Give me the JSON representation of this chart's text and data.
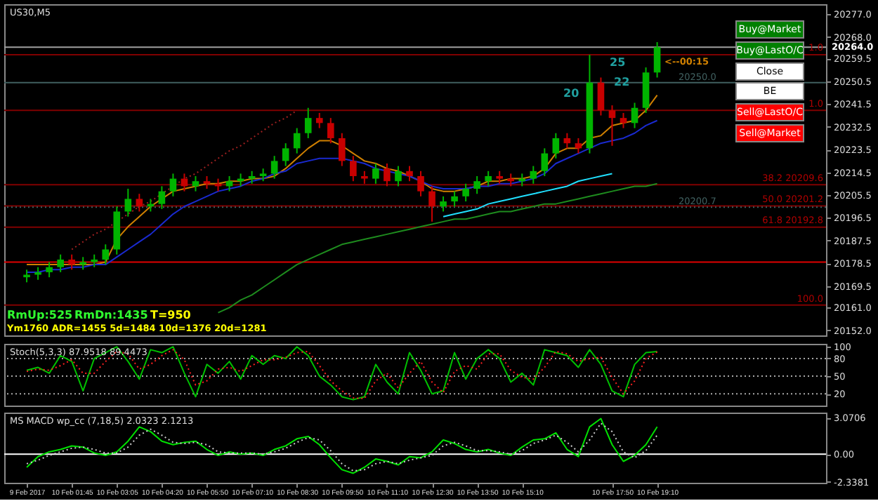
{
  "chart_data": [
    {
      "type": "candlestick",
      "title": "US30,M5",
      "categories": [
        null,
        null,
        null,
        null,
        null,
        null,
        null,
        null,
        null,
        null,
        null,
        null,
        null,
        null,
        null,
        null,
        null,
        null,
        null,
        null,
        null,
        null,
        null,
        null,
        null,
        null,
        null,
        null,
        null,
        null,
        null,
        null,
        null,
        null,
        null,
        null,
        null,
        null,
        null,
        null,
        null,
        null,
        null,
        null,
        null,
        null,
        null,
        null,
        null,
        null,
        null,
        null,
        null,
        null,
        null,
        null,
        null
      ],
      "ohlc": [
        [
          20173,
          20176,
          20171,
          20174
        ],
        [
          20174,
          20177,
          20172,
          20175
        ],
        [
          20175,
          20179,
          20173,
          20177
        ],
        [
          20177,
          20182,
          20175,
          20180
        ],
        [
          20180,
          20182,
          20176,
          20178
        ],
        [
          20178,
          20181,
          20176,
          20179
        ],
        [
          20179,
          20182,
          20177,
          20180
        ],
        [
          20180,
          20186,
          20178,
          20184
        ],
        [
          20184,
          20201,
          20182,
          20199
        ],
        [
          20199,
          20208,
          20197,
          20204
        ],
        [
          20204,
          20206,
          20199,
          20201
        ],
        [
          20201,
          20204,
          20199,
          20202
        ],
        [
          20202,
          20209,
          20200,
          20207
        ],
        [
          20207,
          20214,
          20205,
          20212
        ],
        [
          20212,
          20214,
          20207,
          20209
        ],
        [
          20209,
          20213,
          20207,
          20211
        ],
        [
          20211,
          20213,
          20208,
          20210
        ],
        [
          20210,
          20212,
          20207,
          20209
        ],
        [
          20209,
          20213,
          20207,
          20211
        ],
        [
          20211,
          20214,
          20209,
          20212
        ],
        [
          20212,
          20215,
          20210,
          20213
        ],
        [
          20213,
          20216,
          20211,
          20214
        ],
        [
          20214,
          20221,
          20212,
          20219
        ],
        [
          20219,
          20226,
          20217,
          20224
        ],
        [
          20224,
          20232,
          20222,
          20230
        ],
        [
          20230,
          20240,
          20228,
          20236
        ],
        [
          20236,
          20238,
          20232,
          20234
        ],
        [
          20234,
          20236,
          20226,
          20228
        ],
        [
          20228,
          20230,
          20217,
          20219
        ],
        [
          20219,
          20221,
          20211,
          20213
        ],
        [
          20213,
          20215,
          20210,
          20212
        ],
        [
          20212,
          20218,
          20210,
          20216
        ],
        [
          20216,
          20218,
          20209,
          20211
        ],
        [
          20211,
          20217,
          20209,
          20215
        ],
        [
          20215,
          20217,
          20211,
          20213
        ],
        [
          20213,
          20215,
          20205,
          20207
        ],
        [
          20207,
          20209,
          20195,
          20201
        ],
        [
          20201,
          20205,
          20199,
          20203
        ],
        [
          20203,
          20207,
          20201,
          20205
        ],
        [
          20205,
          20210,
          20203,
          20208
        ],
        [
          20208,
          20213,
          20206,
          20211
        ],
        [
          20211,
          20215,
          20209,
          20213
        ],
        [
          20213,
          20215,
          20210,
          20212
        ],
        [
          20212,
          20214,
          20209,
          20211
        ],
        [
          20211,
          20214,
          20209,
          20212
        ],
        [
          20212,
          20217,
          20210,
          20215
        ],
        [
          20215,
          20224,
          20213,
          20222
        ],
        [
          20222,
          20230,
          20220,
          20228
        ],
        [
          20228,
          20230,
          20224,
          20226
        ],
        [
          20226,
          20228,
          20222,
          20224
        ],
        [
          20224,
          20261,
          20222,
          20250
        ],
        [
          20250,
          20252,
          20237,
          20239
        ],
        [
          20239,
          20241,
          20225,
          20236
        ],
        [
          20236,
          20238,
          20232,
          20234
        ],
        [
          20234,
          20242,
          20232,
          20240
        ],
        [
          20240,
          20256,
          20238,
          20254
        ],
        [
          20254,
          20266,
          20252,
          20264
        ]
      ],
      "colors": [
        "#00b400",
        "#00b400",
        "#00b400",
        "#00b400",
        "#c80000",
        "#00b400",
        "#00b400",
        "#00b400",
        "#00b400",
        "#00b400",
        "#c80000",
        "#00b400",
        "#00b400",
        "#00b400",
        "#c80000",
        "#00b400",
        "#c80000",
        "#c80000",
        "#00b400",
        "#00b400",
        "#00b400",
        "#00b400",
        "#00b400",
        "#00b400",
        "#00b400",
        "#00b400",
        "#c80000",
        "#c80000",
        "#c80000",
        "#c80000",
        "#c80000",
        "#00b400",
        "#c80000",
        "#00b400",
        "#c80000",
        "#c80000",
        "#c80000",
        "#00b400",
        "#00b400",
        "#00b400",
        "#00b400",
        "#00b400",
        "#c80000",
        "#c80000",
        "#00b400",
        "#00b400",
        "#00b400",
        "#00b400",
        "#c80000",
        "#c80000",
        "#00b400",
        "#c80000",
        "#c80000",
        "#c80000",
        "#00b400",
        "#00b400",
        "#00b400"
      ],
      "series": [
        {
          "type": "line",
          "color": "#d08000",
          "values": [
            20178,
            20178,
            20178,
            20178,
            20178,
            20178,
            20178,
            20179,
            20188,
            20193,
            20197,
            20201,
            20204,
            20207,
            20208,
            20209,
            20210,
            20210,
            20211,
            20211,
            20212,
            20212,
            20213,
            20216,
            20220,
            20224,
            20227,
            20227,
            20225,
            20222,
            20219,
            20218,
            20216,
            20215,
            20213,
            20211,
            20208,
            20207,
            20207,
            20208,
            20209,
            20211,
            20211,
            20212,
            20212,
            20213,
            20216,
            20222,
            20224,
            20224,
            20228,
            20229,
            20233,
            20234,
            20235,
            20239,
            20245
          ]
        },
        {
          "type": "line",
          "color": "#1a2ad0",
          "values": [
            20175,
            20175,
            20176,
            20176,
            20177,
            20177,
            20178,
            20178,
            20181,
            20184,
            20187,
            20190,
            20194,
            20198,
            20201,
            20203,
            20205,
            20207,
            20208,
            20209,
            20211,
            20212,
            20214,
            20215,
            20218,
            20219,
            20220,
            20220,
            20220,
            20219,
            20218,
            20216,
            20215,
            20214,
            20213,
            20211,
            20209,
            20208,
            20208,
            20208,
            20209,
            20209,
            20210,
            20210,
            20211,
            20212,
            20214,
            20218,
            20220,
            20222,
            20224,
            20226,
            20227,
            20228,
            20230,
            20233,
            20235
          ]
        },
        {
          "type": "line",
          "color": "#1e8c1e",
          "values": [
            null,
            null,
            null,
            null,
            null,
            null,
            null,
            null,
            null,
            null,
            null,
            null,
            null,
            null,
            null,
            null,
            null,
            20159,
            20161,
            20164,
            20166,
            20169,
            20172,
            20175,
            20178,
            20180,
            20182,
            20184,
            20186,
            20187,
            20188,
            20189,
            20190,
            20191,
            20192,
            20193,
            20194,
            20195,
            20196,
            20196,
            20197,
            20198,
            20199,
            20199,
            20200,
            20201,
            20202,
            20202,
            20203,
            20204,
            20205,
            20206,
            20207,
            20208,
            20209,
            20209,
            20210
          ]
        },
        {
          "type": "line",
          "color": "#20e0ff",
          "values": [
            null,
            null,
            null,
            null,
            null,
            null,
            null,
            null,
            null,
            null,
            null,
            null,
            null,
            null,
            null,
            null,
            null,
            null,
            null,
            null,
            null,
            null,
            null,
            null,
            null,
            null,
            null,
            null,
            null,
            null,
            null,
            null,
            null,
            null,
            null,
            null,
            null,
            20197,
            20198,
            20199,
            20200,
            20202,
            20203,
            20204,
            20205,
            20206,
            20207,
            20208,
            20209,
            20211,
            20212,
            20213,
            20214,
            null,
            null,
            null,
            null
          ]
        },
        {
          "type": "line",
          "color": "#a02020",
          "line_style": "dotted",
          "values": [
            null,
            null,
            null,
            null,
            20184,
            20187,
            20190,
            20192,
            20195,
            20198,
            20201,
            20203,
            20206,
            20209,
            20212,
            20214,
            20217,
            20220,
            20223,
            20225,
            20228,
            20231,
            20234,
            20236,
            20239,
            null,
            null,
            null,
            null,
            null,
            null,
            null,
            null,
            null,
            null,
            null,
            null,
            null,
            null,
            null,
            null,
            null,
            null,
            null,
            null,
            null,
            null,
            null,
            null,
            null,
            null,
            null,
            null,
            null,
            null,
            null,
            null
          ]
        }
      ],
      "ylim": [
        20150,
        20281
      ],
      "yticks": [
        {
          "value": 20277,
          "label": "20277.0"
        },
        {
          "value": 20268,
          "label": "20268.0"
        },
        20259.5,
        20250.5,
        20241.5,
        20232.5,
        20223.5,
        20214.5,
        20205.5,
        20196.5,
        20187.5,
        20178.5,
        20169.5,
        {
          "value": 20161,
          "label": "20161.0"
        },
        {
          "value": 20152,
          "label": "20152.0"
        }
      ],
      "tick_labels": "y",
      "ref_lines": [
        {
          "axis": "y",
          "value": 20264.0,
          "label": "20264.0",
          "color": "#a0a0a0"
        },
        {
          "axis": "y",
          "value": 20261,
          "color": "#800000"
        },
        {
          "axis": "y",
          "value": 20250.0,
          "label": "20250.0",
          "color": "#406060"
        },
        {
          "axis": "y",
          "value": 20239,
          "color": "#800000"
        },
        {
          "axis": "y",
          "value": 20209.6,
          "color": "#800000"
        },
        {
          "axis": "y",
          "value": 20201.2,
          "color": "#800000"
        },
        {
          "axis": "y",
          "value": 20200.7,
          "label": "20200.7",
          "color": "#406060",
          "line_style": "dotted"
        },
        {
          "axis": "y",
          "value": 20192.8,
          "color": "#800000"
        },
        {
          "axis": "y",
          "value": 20179,
          "color": "#e00000"
        },
        {
          "axis": "y",
          "value": 20162,
          "color": "#800000"
        }
      ],
      "annotations": [
        "RmUp:525",
        "RmDn:1435",
        "T=950",
        "Ym1760  ADR=1455  5d=1484  10d=1376  20d=1281",
        "20",
        "25",
        "22",
        "<--00:15",
        "Buy@Market",
        "Buy@LastO/C",
        "Close",
        "BE",
        "Sell@LastO/C",
        "Sell@Market",
        "1.0",
        "1.0",
        "38.2 20209.6",
        "50.0 20201.2",
        "61.8 20192.8",
        "100.0"
      ]
    },
    {
      "type": "line",
      "title": "Stoch(5,3,3) 87.9518 89.4473",
      "categories": [
        null,
        null,
        null,
        null,
        null,
        null,
        null,
        null,
        null,
        null,
        null,
        null,
        null,
        null,
        null,
        null,
        null,
        null,
        null,
        null,
        null,
        null,
        null,
        null,
        null,
        null,
        null,
        null,
        null,
        null,
        null,
        null,
        null,
        null,
        null,
        null,
        null,
        null,
        null,
        null,
        null,
        null,
        null,
        null,
        null,
        null,
        null,
        null,
        null,
        null,
        null,
        null,
        null,
        null,
        null,
        null,
        null
      ],
      "series": [
        {
          "color": "#00c000",
          "values": [
            60,
            65,
            55,
            85,
            75,
            25,
            80,
            90,
            100,
            75,
            45,
            95,
            90,
            100,
            55,
            15,
            70,
            55,
            75,
            45,
            85,
            70,
            85,
            80,
            100,
            85,
            50,
            35,
            15,
            10,
            15,
            70,
            40,
            20,
            90,
            60,
            20,
            25,
            90,
            45,
            80,
            95,
            80,
            40,
            55,
            35,
            95,
            90,
            85,
            65,
            95,
            70,
            25,
            15,
            70,
            90,
            92
          ]
        },
        {
          "color": "#ff2020",
          "line_style": "dotted",
          "values": [
            58,
            62,
            60,
            68,
            78,
            55,
            55,
            75,
            92,
            88,
            62,
            70,
            85,
            95,
            78,
            35,
            42,
            62,
            65,
            58,
            68,
            78,
            78,
            82,
            90,
            92,
            68,
            42,
            25,
            13,
            12,
            42,
            55,
            30,
            55,
            75,
            40,
            22,
            58,
            68,
            62,
            88,
            88,
            60,
            48,
            45,
            65,
            92,
            88,
            75,
            80,
            82,
            48,
            20,
            42,
            80,
            91
          ]
        }
      ],
      "ylim": [
        0,
        105
      ],
      "yticks": [
        20,
        50,
        80,
        100
      ],
      "tick_labels": "y",
      "ref_lines": [
        {
          "axis": "y",
          "value": 20,
          "color": "#aaaaaa",
          "line_style": "dotted"
        },
        {
          "axis": "y",
          "value": 50,
          "color": "#aaaaaa",
          "line_style": "dotted"
        },
        {
          "axis": "y",
          "value": 80,
          "color": "#aaaaaa",
          "line_style": "dotted"
        }
      ]
    },
    {
      "type": "line",
      "title": "MS MACD wp_cc (7,18,5) 2.0323 2.1213",
      "categories": [
        "9 Feb 2017",
        null,
        null,
        null,
        "10 Feb 01:45",
        null,
        null,
        null,
        "10 Feb 03:05",
        null,
        null,
        null,
        "10 Feb 04:20",
        null,
        null,
        null,
        "10 Feb 05:50",
        null,
        null,
        null,
        "10 Feb 07:10",
        null,
        null,
        null,
        "10 Feb 08:30",
        null,
        null,
        null,
        "10 Feb 09:50",
        null,
        null,
        null,
        "10 Feb 11:10",
        null,
        null,
        null,
        "10 Feb 12:30",
        null,
        null,
        null,
        "10 Feb 13:50",
        null,
        null,
        null,
        "10 Feb 15:10",
        null,
        null,
        null,
        null,
        null,
        null,
        null,
        "10 Feb 17:50",
        null,
        null,
        null,
        "10 Feb 19:10"
      ],
      "series": [
        {
          "color": "#00e000",
          "values": [
            -1.1,
            -0.2,
            0.2,
            0.4,
            0.7,
            0.6,
            0.1,
            -0.1,
            0.2,
            1.1,
            2.3,
            1.9,
            1.1,
            0.8,
            1.0,
            1.1,
            0.4,
            -0.1,
            0.2,
            0,
            0.1,
            -0.1,
            0.4,
            0.7,
            1.3,
            1.5,
            0.8,
            -0.3,
            -1.3,
            -1.6,
            -1.1,
            -0.4,
            -0.6,
            -0.9,
            -0.2,
            -0.3,
            0.2,
            1.2,
            0.9,
            0.4,
            0.2,
            0.4,
            0.1,
            -0.1,
            0.6,
            1.2,
            1.3,
            1.8,
            0.4,
            -0.2,
            2.3,
            3.0,
            0.8,
            -0.6,
            -0.1,
            0.8,
            2.3
          ]
        },
        {
          "color": "#cccccc",
          "line_style": "dotted",
          "values": [
            -0.8,
            -0.5,
            -0.1,
            0.2,
            0.5,
            0.6,
            0.4,
            0.1,
            0.1,
            0.6,
            1.6,
            2.1,
            1.6,
            1.0,
            0.9,
            1.0,
            0.8,
            0.2,
            0.1,
            0.1,
            0.1,
            0.0,
            0.2,
            0.5,
            1.0,
            1.4,
            1.2,
            0.3,
            -0.8,
            -1.4,
            -1.3,
            -0.8,
            -0.6,
            -0.8,
            -0.5,
            -0.3,
            -0.1,
            0.7,
            1.0,
            0.7,
            0.3,
            0.3,
            0.2,
            0.0,
            0.3,
            0.9,
            1.2,
            1.6,
            1.0,
            0.2,
            1.2,
            2.6,
            1.9,
            0.2,
            -0.3,
            0.3,
            1.6
          ]
        }
      ],
      "ylim": [
        -2.4,
        3.5
      ],
      "yticks": [
        -2.3381,
        {
          "value": 0,
          "label": "0.00"
        },
        3.0706
      ],
      "ref_lines": [
        {
          "axis": "y",
          "value": 0,
          "color": "#ffffff"
        }
      ]
    }
  ]
}
